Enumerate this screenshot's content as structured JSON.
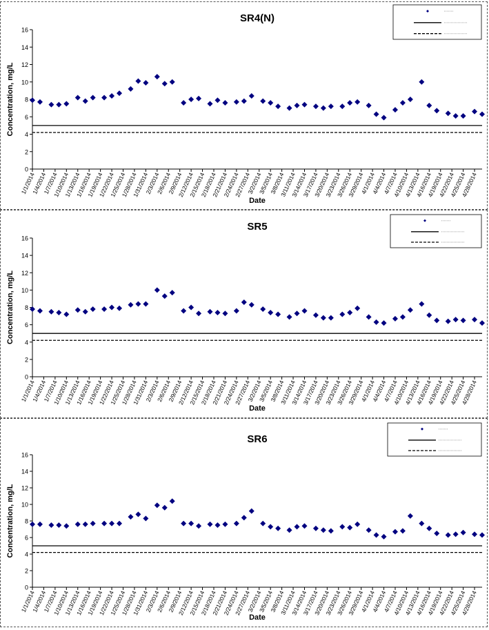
{
  "chart_data": [
    {
      "type": "scatter",
      "title": "SR4(N)",
      "xlabel": "Date",
      "ylabel": "Concentration, mg/L",
      "ylim": [
        0,
        16
      ],
      "yticks": [
        0,
        2,
        4,
        6,
        8,
        10,
        12,
        14,
        16
      ],
      "xlim": [
        "1/1/2014",
        "4/30/2014"
      ],
      "xtick_labels": [
        "1/1/2014",
        "1/4/2014",
        "1/7/2014",
        "1/10/2014",
        "1/13/2014",
        "1/16/2014",
        "1/19/2014",
        "1/22/2014",
        "1/25/2014",
        "1/28/2014",
        "1/31/2014",
        "2/3/2014",
        "2/6/2014",
        "2/9/2014",
        "2/12/2014",
        "2/15/2014",
        "2/18/2014",
        "2/21/2014",
        "2/24/2014",
        "2/27/2014",
        "3/2/2014",
        "3/5/2014",
        "3/8/2014",
        "3/11/2014",
        "3/14/2014",
        "3/17/2014",
        "3/20/2014",
        "3/23/2014",
        "3/26/2014",
        "3/29/2014",
        "4/1/2014",
        "4/4/2014",
        "4/7/2014",
        "4/10/2014",
        "4/13/2014",
        "4/16/2014",
        "4/19/2014",
        "4/22/2014",
        "4/25/2014",
        "4/28/2014"
      ],
      "grid": false,
      "legend": "top-right",
      "legend_entries": [
        "",
        "",
        ""
      ],
      "reference_lines": [
        {
          "style": "solid",
          "value": 5
        },
        {
          "style": "dashed",
          "value": 4.2
        }
      ],
      "series": [
        {
          "marker": "diamond",
          "color": "#000080",
          "x": [
            "1/1/2014",
            "1/3/2014",
            "1/6/2014",
            "1/8/2014",
            "1/10/2014",
            "1/13/2014",
            "1/15/2014",
            "1/17/2014",
            "1/20/2014",
            "1/22/2014",
            "1/24/2014",
            "1/27/2014",
            "1/29/2014",
            "1/31/2014",
            "2/3/2014",
            "2/5/2014",
            "2/7/2014",
            "2/10/2014",
            "2/12/2014",
            "2/14/2014",
            "2/17/2014",
            "2/19/2014",
            "2/21/2014",
            "2/24/2014",
            "2/26/2014",
            "2/28/2014",
            "3/3/2014",
            "3/5/2014",
            "3/7/2014",
            "3/10/2014",
            "3/12/2014",
            "3/14/2014",
            "3/17/2014",
            "3/19/2014",
            "3/21/2014",
            "3/24/2014",
            "3/26/2014",
            "3/28/2014",
            "3/31/2014",
            "4/2/2014",
            "4/4/2014",
            "4/7/2014",
            "4/9/2014",
            "4/11/2014",
            "4/14/2014",
            "4/16/2014",
            "4/18/2014",
            "4/21/2014",
            "4/23/2014",
            "4/25/2014",
            "4/28/2014",
            "4/30/2014"
          ],
          "y": [
            7.9,
            7.7,
            7.4,
            7.4,
            7.5,
            8.2,
            7.8,
            8.2,
            8.2,
            8.4,
            8.7,
            9.2,
            10.1,
            9.9,
            10.6,
            9.8,
            10.0,
            7.6,
            8.0,
            8.1,
            7.5,
            7.9,
            7.6,
            7.7,
            7.8,
            8.4,
            7.8,
            7.6,
            7.2,
            7.0,
            7.3,
            7.4,
            7.2,
            7.0,
            7.2,
            7.2,
            7.6,
            7.7,
            7.3,
            6.3,
            5.9,
            6.8,
            7.6,
            8.0,
            10.0,
            7.3,
            6.7,
            6.4,
            6.1,
            6.1,
            6.6,
            6.3
          ]
        }
      ]
    },
    {
      "type": "scatter",
      "title": "SR5",
      "xlabel": "Date",
      "ylabel": "Concentration, mg/L",
      "ylim": [
        0,
        16
      ],
      "yticks": [
        0,
        2,
        4,
        6,
        8,
        10,
        12,
        14,
        16
      ],
      "xlim": [
        "1/1/2014",
        "4/30/2014"
      ],
      "xtick_labels": [
        "1/1/2014",
        "1/4/2014",
        "1/7/2014",
        "1/10/2014",
        "1/13/2014",
        "1/16/2014",
        "1/19/2014",
        "1/22/2014",
        "1/25/2014",
        "1/28/2014",
        "1/31/2014",
        "2/3/2014",
        "2/6/2014",
        "2/9/2014",
        "2/12/2014",
        "2/15/2014",
        "2/18/2014",
        "2/21/2014",
        "2/24/2014",
        "2/27/2014",
        "3/2/2014",
        "3/5/2014",
        "3/8/2014",
        "3/11/2014",
        "3/14/2014",
        "3/17/2014",
        "3/20/2014",
        "3/23/2014",
        "3/26/2014",
        "3/29/2014",
        "4/1/2014",
        "4/4/2014",
        "4/7/2014",
        "4/10/2014",
        "4/13/2014",
        "4/16/2014",
        "4/19/2014",
        "4/22/2014",
        "4/25/2014",
        "4/28/2014"
      ],
      "grid": false,
      "legend": "top-right",
      "legend_entries": [
        "",
        "",
        ""
      ],
      "reference_lines": [
        {
          "style": "solid",
          "value": 5
        },
        {
          "style": "dashed",
          "value": 4.2
        }
      ],
      "series": [
        {
          "marker": "diamond",
          "color": "#000080",
          "x": [
            "1/1/2014",
            "1/3/2014",
            "1/6/2014",
            "1/8/2014",
            "1/10/2014",
            "1/13/2014",
            "1/15/2014",
            "1/17/2014",
            "1/20/2014",
            "1/22/2014",
            "1/24/2014",
            "1/27/2014",
            "1/29/2014",
            "1/31/2014",
            "2/3/2014",
            "2/5/2014",
            "2/7/2014",
            "2/10/2014",
            "2/12/2014",
            "2/14/2014",
            "2/17/2014",
            "2/19/2014",
            "2/21/2014",
            "2/24/2014",
            "2/26/2014",
            "2/28/2014",
            "3/3/2014",
            "3/5/2014",
            "3/7/2014",
            "3/10/2014",
            "3/12/2014",
            "3/14/2014",
            "3/17/2014",
            "3/19/2014",
            "3/21/2014",
            "3/24/2014",
            "3/26/2014",
            "3/28/2014",
            "3/31/2014",
            "4/2/2014",
            "4/4/2014",
            "4/7/2014",
            "4/9/2014",
            "4/11/2014",
            "4/14/2014",
            "4/16/2014",
            "4/18/2014",
            "4/21/2014",
            "4/23/2014",
            "4/25/2014",
            "4/28/2014",
            "4/30/2014"
          ],
          "y": [
            7.8,
            7.6,
            7.5,
            7.4,
            7.2,
            7.7,
            7.5,
            7.8,
            7.8,
            8.0,
            7.9,
            8.3,
            8.4,
            8.4,
            10.0,
            9.3,
            9.7,
            7.6,
            8.0,
            7.3,
            7.5,
            7.4,
            7.3,
            7.6,
            8.6,
            8.3,
            7.8,
            7.4,
            7.2,
            6.9,
            7.3,
            7.6,
            7.1,
            6.8,
            6.8,
            7.2,
            7.4,
            7.9,
            6.9,
            6.3,
            6.2,
            6.7,
            6.9,
            7.7,
            8.4,
            7.1,
            6.5,
            6.4,
            6.6,
            6.5,
            6.6,
            6.2
          ]
        }
      ]
    },
    {
      "type": "scatter",
      "title": "SR6",
      "xlabel": "Date",
      "ylabel": "Concentration, mg/L",
      "ylim": [
        0,
        16
      ],
      "yticks": [
        0,
        2,
        4,
        6,
        8,
        10,
        12,
        14,
        16
      ],
      "xlim": [
        "1/1/2014",
        "4/30/2014"
      ],
      "xtick_labels": [
        "1/1/2014",
        "1/4/2014",
        "1/7/2014",
        "1/10/2014",
        "1/13/2014",
        "1/16/2014",
        "1/19/2014",
        "1/22/2014",
        "1/25/2014",
        "1/28/2014",
        "1/31/2014",
        "2/3/2014",
        "2/6/2014",
        "2/9/2014",
        "2/12/2014",
        "2/15/2014",
        "2/18/2014",
        "2/21/2014",
        "2/24/2014",
        "2/27/2014",
        "3/2/2014",
        "3/5/2014",
        "3/8/2014",
        "3/11/2014",
        "3/14/2014",
        "3/17/2014",
        "3/20/2014",
        "3/23/2014",
        "3/26/2014",
        "3/29/2014",
        "4/1/2014",
        "4/4/2014",
        "4/7/2014",
        "4/10/2014",
        "4/13/2014",
        "4/16/2014",
        "4/19/2014",
        "4/22/2014",
        "4/25/2014",
        "4/28/2014"
      ],
      "grid": false,
      "legend": "top-right",
      "legend_entries": [
        "",
        "",
        ""
      ],
      "reference_lines": [
        {
          "style": "solid",
          "value": 5
        },
        {
          "style": "dashed",
          "value": 4.2
        }
      ],
      "series": [
        {
          "marker": "diamond",
          "color": "#000080",
          "x": [
            "1/1/2014",
            "1/3/2014",
            "1/6/2014",
            "1/8/2014",
            "1/10/2014",
            "1/13/2014",
            "1/15/2014",
            "1/17/2014",
            "1/20/2014",
            "1/22/2014",
            "1/24/2014",
            "1/27/2014",
            "1/29/2014",
            "1/31/2014",
            "2/3/2014",
            "2/5/2014",
            "2/7/2014",
            "2/10/2014",
            "2/12/2014",
            "2/14/2014",
            "2/17/2014",
            "2/19/2014",
            "2/21/2014",
            "2/24/2014",
            "2/26/2014",
            "2/28/2014",
            "3/3/2014",
            "3/5/2014",
            "3/7/2014",
            "3/10/2014",
            "3/12/2014",
            "3/14/2014",
            "3/17/2014",
            "3/19/2014",
            "3/21/2014",
            "3/24/2014",
            "3/26/2014",
            "3/28/2014",
            "3/31/2014",
            "4/2/2014",
            "4/4/2014",
            "4/7/2014",
            "4/9/2014",
            "4/11/2014",
            "4/14/2014",
            "4/16/2014",
            "4/18/2014",
            "4/21/2014",
            "4/23/2014",
            "4/25/2014",
            "4/28/2014",
            "4/30/2014"
          ],
          "y": [
            7.6,
            7.6,
            7.5,
            7.5,
            7.4,
            7.6,
            7.6,
            7.7,
            7.7,
            7.7,
            7.7,
            8.5,
            8.8,
            8.3,
            9.9,
            9.6,
            10.4,
            7.7,
            7.7,
            7.4,
            7.6,
            7.5,
            7.6,
            7.7,
            8.4,
            9.2,
            7.7,
            7.3,
            7.1,
            6.9,
            7.3,
            7.4,
            7.1,
            6.9,
            6.8,
            7.3,
            7.2,
            7.6,
            6.9,
            6.3,
            6.1,
            6.7,
            6.8,
            8.6,
            7.7,
            7.1,
            6.5,
            6.3,
            6.4,
            6.6,
            6.4,
            6.3
          ]
        }
      ]
    }
  ]
}
